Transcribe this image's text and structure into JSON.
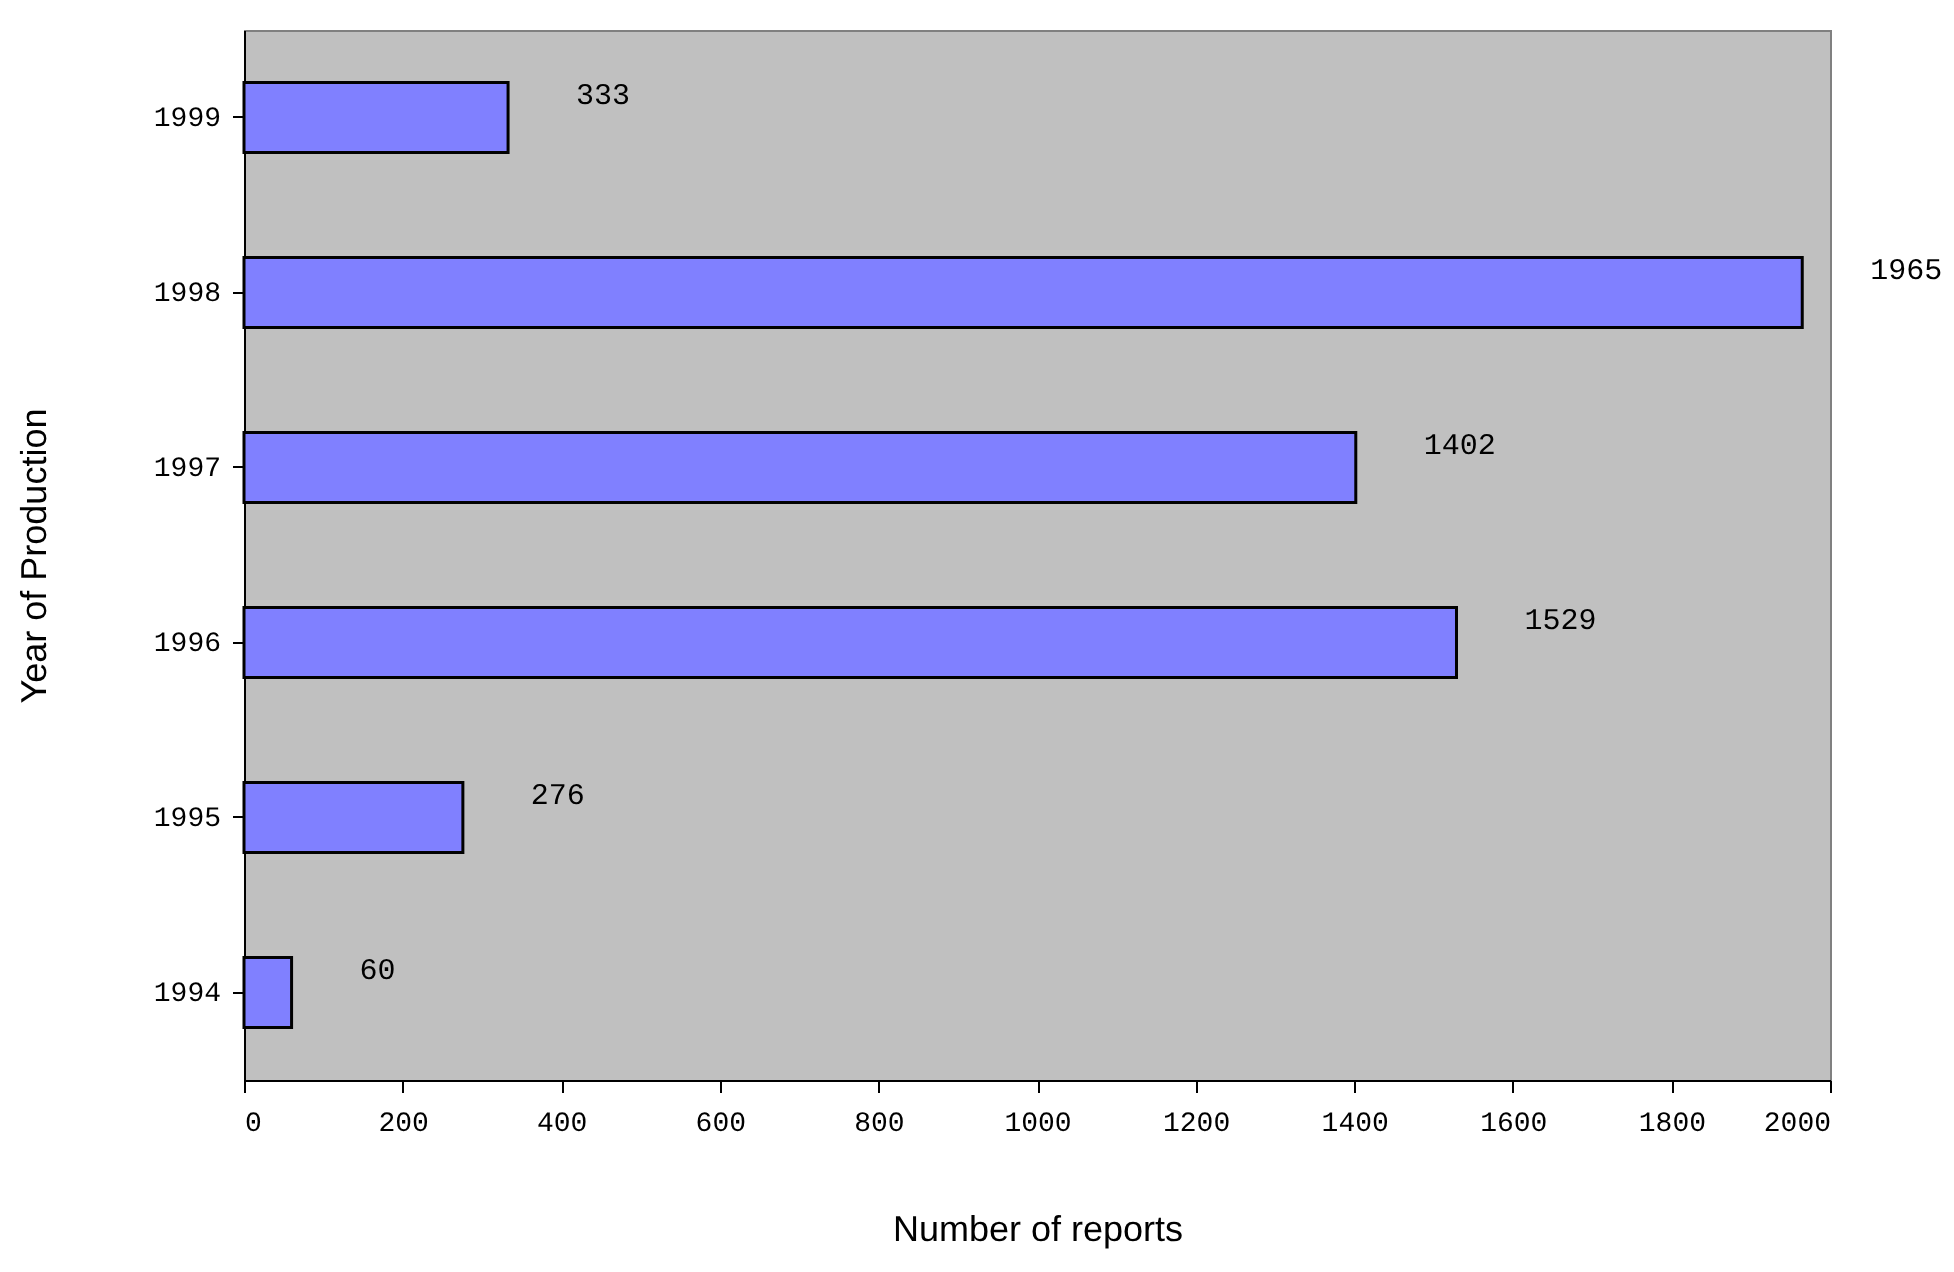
{
  "chart_data": {
    "type": "bar",
    "orientation": "horizontal",
    "xlabel": "Number of  reports",
    "ylabel": "Year of Production",
    "categories": [
      "1999",
      "1998",
      "1997",
      "1996",
      "1995",
      "1994"
    ],
    "values": [
      333,
      1965,
      1402,
      1529,
      276,
      60
    ],
    "color": "#8080ff",
    "xlim": [
      0,
      2000
    ],
    "xticks": [
      0,
      200,
      400,
      600,
      800,
      1000,
      1200,
      1400,
      1600,
      1800,
      2000
    ],
    "data_labels": true,
    "grid": false
  }
}
